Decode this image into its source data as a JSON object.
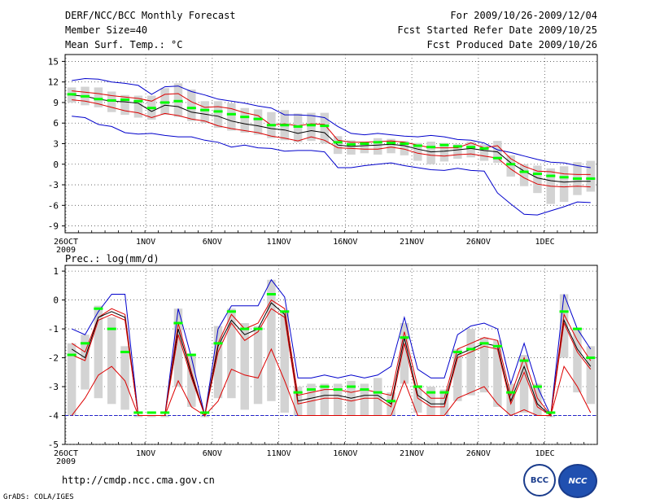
{
  "header": {
    "title": "DERF/NCC/BCC Monthly Forecast",
    "member_size": "Member Size=40",
    "variable": "Mean Surf. Temp.: °C",
    "forecast_range": "For 2009/10/26-2009/12/04",
    "fcst_started": "Fcst Started Refer Date 2009/10/25",
    "fcst_produced": "Fcst Produced Date 2009/10/26"
  },
  "footer": {
    "url": "http://cmdp.ncc.cma.gov.cn",
    "grads": "GrADS: COLA/IGES",
    "logo_bcc": "BCC",
    "logo_ncc": "NCC"
  },
  "colors": {
    "box": "#d3d3d3",
    "median": "#00ff00",
    "mean": "#000000",
    "minmax": "#0000cc",
    "inner": "#dd0000",
    "grid": "#555555"
  },
  "chart_data": [
    {
      "type": "line",
      "title": "Mean Surf. Temp.: °C",
      "xlabel": "",
      "ylabel": "°C",
      "ylim": [
        -10,
        16
      ],
      "yticks": [
        15,
        12,
        9,
        6,
        3,
        0,
        -3,
        -6,
        -9
      ],
      "days": 40,
      "xticks": [
        {
          "day": 0,
          "label": "26OCT",
          "sub": "2009"
        },
        {
          "day": 6,
          "label": "1NOV"
        },
        {
          "day": 11,
          "label": "6NOV"
        },
        {
          "day": 16,
          "label": "11NOV"
        },
        {
          "day": 21,
          "label": "16NOV"
        },
        {
          "day": 26,
          "label": "21NOV"
        },
        {
          "day": 31,
          "label": "26NOV"
        },
        {
          "day": 36,
          "label": "1DEC"
        }
      ],
      "grid": true,
      "series": [
        {
          "name": "max",
          "color": "#0000cc",
          "values": [
            12.2,
            12.5,
            12.4,
            12.0,
            11.8,
            11.5,
            10.2,
            11.3,
            11.4,
            10.6,
            10.1,
            9.5,
            9.2,
            8.9,
            8.5,
            8.2,
            7.2,
            7.2,
            7.1,
            6.8,
            5.5,
            4.5,
            4.3,
            4.5,
            4.3,
            4.1,
            4.0,
            4.2,
            4.0,
            3.6,
            3.5,
            3.1,
            2.1,
            1.7,
            1.2,
            0.7,
            0.3,
            0.2,
            -0.2,
            -0.5
          ]
        },
        {
          "name": "upper",
          "color": "#dd0000",
          "values": [
            10.7,
            10.5,
            10.3,
            10.0,
            9.8,
            9.6,
            9.2,
            10.2,
            10.3,
            9.1,
            8.3,
            8.4,
            8.1,
            7.5,
            7.1,
            5.7,
            5.9,
            5.6,
            5.9,
            5.8,
            3.5,
            3.2,
            3.2,
            3.3,
            3.4,
            3.2,
            2.8,
            2.4,
            2.4,
            2.4,
            3.1,
            2.4,
            2.7,
            0.8,
            -0.3,
            -1.0,
            -1.1,
            -1.4,
            -1.5,
            -1.5
          ]
        },
        {
          "name": "mean",
          "color": "#000000",
          "values": [
            10.1,
            9.9,
            9.5,
            9.2,
            9.1,
            8.9,
            7.7,
            8.6,
            8.4,
            7.6,
            7.3,
            7.0,
            6.3,
            5.9,
            5.6,
            5.2,
            5.0,
            4.5,
            4.9,
            4.6,
            2.8,
            2.6,
            2.7,
            2.8,
            2.9,
            2.7,
            2.2,
            1.8,
            1.9,
            2.1,
            2.3,
            2.0,
            1.8,
            0.2,
            -1.0,
            -2.0,
            -2.4,
            -2.6,
            -2.5,
            -2.5
          ]
        },
        {
          "name": "lower",
          "color": "#dd0000",
          "values": [
            9.4,
            9.2,
            8.8,
            8.3,
            7.8,
            7.5,
            6.8,
            7.4,
            7.1,
            6.6,
            6.3,
            5.6,
            5.2,
            4.9,
            4.6,
            4.1,
            3.8,
            3.4,
            4.0,
            3.5,
            2.4,
            2.3,
            2.2,
            2.2,
            2.5,
            2.2,
            1.6,
            1.3,
            1.2,
            1.4,
            1.5,
            1.2,
            0.9,
            -0.7,
            -2.0,
            -2.9,
            -3.2,
            -3.3,
            -3.2,
            -3.3
          ]
        },
        {
          "name": "min",
          "color": "#0000cc",
          "values": [
            7.0,
            6.8,
            5.8,
            5.5,
            4.6,
            4.4,
            4.5,
            4.2,
            4.0,
            4.0,
            3.5,
            3.2,
            2.5,
            2.8,
            2.4,
            2.3,
            1.9,
            2.0,
            2.0,
            1.8,
            -0.5,
            -0.5,
            -0.2,
            0.0,
            0.2,
            -0.2,
            -0.5,
            -0.8,
            -0.9,
            -0.6,
            -0.9,
            -1.0,
            -4.2,
            -5.8,
            -7.3,
            -7.4,
            -6.8,
            -6.2,
            -5.5,
            -5.6
          ]
        }
      ],
      "boxes": {
        "low": [
          9.0,
          8.6,
          8.3,
          7.6,
          7.2,
          6.8,
          6.5,
          7.2,
          6.9,
          6.3,
          6.0,
          5.3,
          4.9,
          4.6,
          4.3,
          3.8,
          3.5,
          3.2,
          3.4,
          3.0,
          1.5,
          1.4,
          1.6,
          1.4,
          1.6,
          1.3,
          0.5,
          0.0,
          0.4,
          0.8,
          1.0,
          0.5,
          0.2,
          -1.8,
          -3.2,
          -4.2,
          -5.8,
          -5.5,
          -4.5,
          -4.0
        ],
        "high": [
          11.2,
          11.3,
          11.2,
          10.6,
          10.1,
          10.0,
          10.0,
          11.1,
          11.8,
          10.9,
          9.2,
          9.2,
          8.9,
          8.2,
          8.0,
          7.6,
          7.9,
          7.4,
          7.5,
          7.5,
          4.1,
          3.5,
          3.3,
          3.8,
          3.7,
          3.4,
          3.1,
          3.3,
          3.1,
          2.9,
          3.3,
          2.9,
          3.4,
          1.3,
          0.0,
          -0.2,
          -0.6,
          -0.3,
          0.3,
          0.5
        ],
        "median": [
          10.2,
          9.9,
          9.5,
          9.3,
          9.4,
          9.2,
          8.2,
          9.0,
          9.2,
          8.2,
          7.9,
          7.7,
          7.3,
          6.9,
          6.6,
          5.7,
          5.7,
          5.5,
          5.7,
          5.6,
          3.2,
          2.9,
          3.0,
          3.2,
          3.1,
          3.0,
          2.7,
          2.5,
          2.8,
          2.6,
          2.5,
          2.3,
          0.9,
          0.0,
          -1.1,
          -1.4,
          -1.7,
          -1.9,
          -2.1,
          -2.1
        ]
      }
    },
    {
      "type": "line",
      "title": "Prec.: log(mm/d)",
      "xlabel": "",
      "ylabel": "log(mm/d)",
      "ylim": [
        -5,
        1.2
      ],
      "yticks": [
        1,
        0,
        -1,
        -2,
        -3,
        -4,
        -5
      ],
      "days": 40,
      "xticks": [
        {
          "day": 0,
          "label": "26OCT",
          "sub": "2009"
        },
        {
          "day": 6,
          "label": "1NOV"
        },
        {
          "day": 11,
          "label": "6NOV"
        },
        {
          "day": 16,
          "label": "11NOV"
        },
        {
          "day": 21,
          "label": "16NOV"
        },
        {
          "day": 26,
          "label": "21NOV"
        },
        {
          "day": 31,
          "label": "26NOV"
        },
        {
          "day": 36,
          "label": "1DEC"
        }
      ],
      "grid": true,
      "baseline": -4,
      "series": [
        {
          "name": "max",
          "color": "#0000cc",
          "values": [
            -1.0,
            -1.2,
            -0.4,
            0.2,
            0.2,
            -4.0,
            -4.0,
            -4.0,
            -0.3,
            -2.0,
            -4.0,
            -1.0,
            -0.2,
            -0.2,
            -0.2,
            0.7,
            0.1,
            -2.7,
            -2.7,
            -2.6,
            -2.7,
            -2.6,
            -2.7,
            -2.6,
            -2.3,
            -0.6,
            -2.4,
            -2.7,
            -2.7,
            -1.2,
            -0.9,
            -0.8,
            -1.0,
            -2.9,
            -1.5,
            -3.0,
            -4.0,
            0.2,
            -1.0,
            -1.7
          ]
        },
        {
          "name": "upper",
          "color": "#dd0000",
          "values": [
            -1.5,
            -1.8,
            -0.6,
            -0.3,
            -0.5,
            -4.0,
            -4.0,
            -4.0,
            -0.8,
            -2.5,
            -4.0,
            -1.5,
            -0.5,
            -1.0,
            -0.8,
            0.0,
            -0.3,
            -3.3,
            -3.2,
            -3.1,
            -3.1,
            -3.2,
            -3.1,
            -3.2,
            -3.3,
            -1.1,
            -3.0,
            -3.4,
            -3.4,
            -1.7,
            -1.5,
            -1.3,
            -1.4,
            -3.3,
            -2.0,
            -3.4,
            -4.0,
            -0.5,
            -1.4,
            -2.1
          ]
        },
        {
          "name": "mean",
          "color": "#000000",
          "values": [
            -1.7,
            -2.0,
            -0.6,
            -0.4,
            -0.6,
            -4.0,
            -4.0,
            -4.0,
            -1.0,
            -2.6,
            -4.0,
            -1.6,
            -0.7,
            -1.2,
            -1.0,
            -0.1,
            -0.5,
            -3.5,
            -3.4,
            -3.3,
            -3.3,
            -3.4,
            -3.3,
            -3.3,
            -3.6,
            -1.3,
            -3.3,
            -3.6,
            -3.6,
            -1.9,
            -1.7,
            -1.5,
            -1.6,
            -3.5,
            -2.3,
            -3.6,
            -4.0,
            -0.7,
            -1.7,
            -2.3
          ]
        },
        {
          "name": "lower",
          "color": "#dd0000",
          "values": [
            -1.9,
            -2.1,
            -0.7,
            -0.5,
            -0.7,
            -4.0,
            -4.0,
            -4.0,
            -1.2,
            -2.7,
            -4.0,
            -1.8,
            -0.8,
            -1.4,
            -1.1,
            -0.3,
            -0.6,
            -3.6,
            -3.5,
            -3.4,
            -3.4,
            -3.5,
            -3.4,
            -3.4,
            -3.7,
            -1.5,
            -3.4,
            -3.7,
            -3.7,
            -2.0,
            -1.8,
            -1.6,
            -1.7,
            -3.6,
            -2.5,
            -3.7,
            -4.0,
            -0.8,
            -1.8,
            -2.4
          ]
        },
        {
          "name": "min",
          "color": "#dd0000",
          "values": [
            -4.0,
            -3.4,
            -2.6,
            -2.3,
            -2.8,
            -4.0,
            -4.0,
            -4.0,
            -2.8,
            -3.7,
            -4.0,
            -3.5,
            -2.4,
            -2.6,
            -2.7,
            -1.7,
            -2.8,
            -4.0,
            -4.0,
            -4.0,
            -4.0,
            -4.0,
            -4.0,
            -4.0,
            -4.0,
            -2.8,
            -4.0,
            -4.0,
            -4.0,
            -3.4,
            -3.2,
            -3.0,
            -3.6,
            -4.0,
            -3.8,
            -4.0,
            -4.0,
            -2.3,
            -3.0,
            -3.9
          ]
        }
      ],
      "boxes": {
        "low": [
          -4.0,
          -3.1,
          -3.4,
          -3.6,
          -3.8,
          -4.0,
          -4.0,
          -4.0,
          -3.0,
          -3.7,
          -4.0,
          -3.4,
          -3.4,
          -3.8,
          -3.6,
          -3.5,
          -3.9,
          -4.0,
          -4.0,
          -4.0,
          -4.0,
          -4.0,
          -4.0,
          -4.0,
          -4.0,
          -2.9,
          -3.9,
          -4.0,
          -4.0,
          -3.5,
          -3.3,
          -3.2,
          -3.7,
          -4.0,
          -3.9,
          -4.0,
          -4.0,
          -2.0,
          -3.2,
          -3.6
        ],
        "high": [
          -1.5,
          -1.2,
          -0.2,
          -0.6,
          -1.6,
          -4.0,
          -4.0,
          -4.0,
          -0.3,
          -1.9,
          -4.0,
          -0.9,
          -0.3,
          -0.8,
          -0.9,
          0.7,
          -0.4,
          -3.0,
          -2.9,
          -2.9,
          -2.9,
          -2.8,
          -2.9,
          -2.7,
          -3.2,
          -0.8,
          -3.0,
          -3.0,
          -3.1,
          -1.7,
          -1.0,
          -1.3,
          -1.4,
          -2.9,
          -1.9,
          -2.9,
          -4.0,
          0.2,
          -1.0,
          -1.6
        ],
        "median": [
          -1.9,
          -1.5,
          -0.3,
          -1.0,
          -1.8,
          -3.9,
          -3.9,
          -3.9,
          -0.8,
          -1.9,
          -3.9,
          -1.5,
          -0.4,
          -1.0,
          -1.0,
          0.2,
          -0.4,
          -3.2,
          -3.1,
          -3.0,
          -3.1,
          -3.0,
          -3.1,
          -3.2,
          -3.5,
          -1.3,
          -3.0,
          -3.2,
          -3.2,
          -1.8,
          -1.7,
          -1.5,
          -1.6,
          -3.2,
          -2.1,
          -3.0,
          -3.9,
          -0.4,
          -1.0,
          -2.0
        ]
      }
    }
  ]
}
